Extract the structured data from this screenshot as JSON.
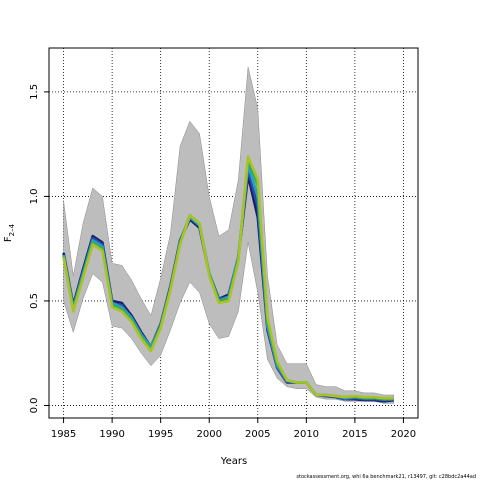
{
  "chart_data": {
    "type": "line",
    "xlabel": "Years",
    "ylabel_main": "F",
    "ylabel_sub": "2–4",
    "xlim": [
      1983.5,
      2021.5
    ],
    "ylim": [
      -0.06,
      1.71
    ],
    "xticks": [
      1985,
      1990,
      1995,
      2000,
      2005,
      2010,
      2015,
      2020
    ],
    "yticks": [
      0.0,
      0.5,
      1.0,
      1.5
    ],
    "ytick_labels": [
      "0.0",
      "0.5",
      "1.0",
      "1.5"
    ],
    "grid": "dotted",
    "x": [
      1985,
      1986,
      1987,
      1988,
      1989,
      1990,
      1991,
      1992,
      1993,
      1994,
      1995,
      1996,
      1997,
      1998,
      1999,
      2000,
      2001,
      2002,
      2003,
      2004,
      2005,
      2006,
      2007,
      2008,
      2009,
      2010,
      2011,
      2012,
      2013,
      2014,
      2015,
      2016,
      2017,
      2018,
      2019
    ],
    "band_upper": [
      0.98,
      0.62,
      0.87,
      1.04,
      1.0,
      0.68,
      0.67,
      0.6,
      0.51,
      0.43,
      0.61,
      0.82,
      1.24,
      1.36,
      1.3,
      1.0,
      0.81,
      0.84,
      1.08,
      1.62,
      1.42,
      0.62,
      0.29,
      0.2,
      0.2,
      0.2,
      0.1,
      0.09,
      0.09,
      0.07,
      0.07,
      0.06,
      0.06,
      0.05,
      0.05
    ],
    "band_lower": [
      0.5,
      0.35,
      0.51,
      0.63,
      0.59,
      0.38,
      0.37,
      0.32,
      0.25,
      0.19,
      0.24,
      0.36,
      0.49,
      0.59,
      0.54,
      0.39,
      0.32,
      0.33,
      0.45,
      0.78,
      0.54,
      0.22,
      0.13,
      0.09,
      0.08,
      0.08,
      0.04,
      0.03,
      0.03,
      0.02,
      0.02,
      0.02,
      0.02,
      0.01,
      0.01
    ],
    "series": [
      {
        "color": "#1b1b6e",
        "values": [
          0.73,
          0.48,
          0.65,
          0.81,
          0.78,
          0.5,
          0.49,
          0.43,
          0.35,
          0.28,
          0.39,
          0.57,
          0.79,
          0.89,
          0.85,
          0.63,
          0.51,
          0.53,
          0.71,
          1.1,
          0.9,
          0.36,
          0.18,
          0.11,
          0.11,
          0.11,
          0.05,
          0.045,
          0.04,
          0.03,
          0.03,
          0.025,
          0.025,
          0.02,
          0.025
        ]
      },
      {
        "color": "#2b4fa8",
        "values": [
          0.72,
          0.47,
          0.64,
          0.8,
          0.77,
          0.49,
          0.48,
          0.42,
          0.34,
          0.28,
          0.39,
          0.56,
          0.79,
          0.9,
          0.86,
          0.63,
          0.51,
          0.52,
          0.71,
          1.13,
          0.95,
          0.37,
          0.18,
          0.11,
          0.11,
          0.11,
          0.05,
          0.045,
          0.04,
          0.03,
          0.035,
          0.03,
          0.03,
          0.025,
          0.03
        ]
      },
      {
        "color": "#26a0c4",
        "values": [
          0.72,
          0.47,
          0.63,
          0.79,
          0.76,
          0.49,
          0.47,
          0.42,
          0.34,
          0.28,
          0.38,
          0.56,
          0.78,
          0.9,
          0.86,
          0.63,
          0.5,
          0.52,
          0.71,
          1.15,
          1.0,
          0.38,
          0.19,
          0.12,
          0.11,
          0.11,
          0.05,
          0.05,
          0.045,
          0.035,
          0.04,
          0.035,
          0.035,
          0.03,
          0.03
        ]
      },
      {
        "color": "#3aa95e",
        "values": [
          0.71,
          0.46,
          0.62,
          0.78,
          0.75,
          0.48,
          0.46,
          0.41,
          0.33,
          0.27,
          0.38,
          0.56,
          0.78,
          0.91,
          0.87,
          0.63,
          0.5,
          0.51,
          0.7,
          1.18,
          1.05,
          0.4,
          0.2,
          0.12,
          0.11,
          0.11,
          0.05,
          0.05,
          0.045,
          0.04,
          0.04,
          0.035,
          0.035,
          0.03,
          0.035
        ]
      },
      {
        "color": "#a8c423",
        "values": [
          0.71,
          0.45,
          0.61,
          0.77,
          0.74,
          0.47,
          0.45,
          0.4,
          0.32,
          0.26,
          0.37,
          0.55,
          0.77,
          0.91,
          0.87,
          0.62,
          0.49,
          0.5,
          0.69,
          1.19,
          1.08,
          0.42,
          0.21,
          0.12,
          0.11,
          0.11,
          0.05,
          0.05,
          0.045,
          0.04,
          0.045,
          0.04,
          0.04,
          0.035,
          0.035
        ]
      }
    ]
  },
  "footer": "stockassessment.org, whi 6a benchmark21, r13497, git: c28bdc2a44ad"
}
